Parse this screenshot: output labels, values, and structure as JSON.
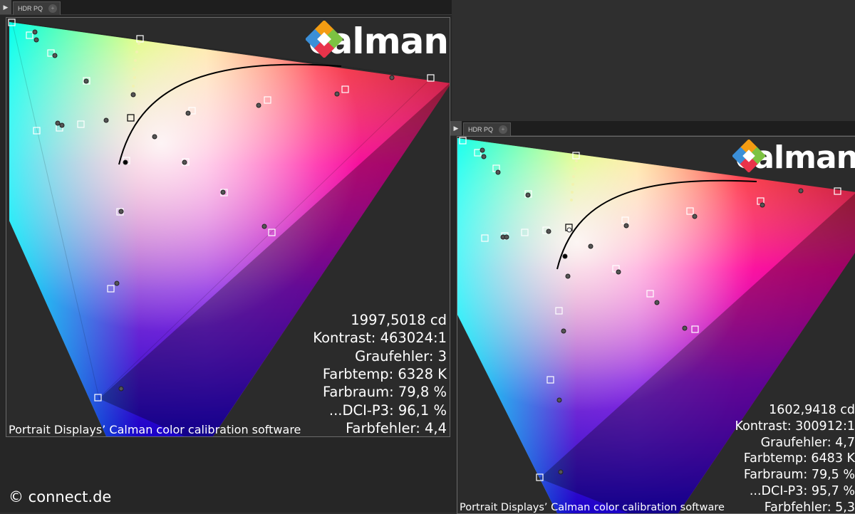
{
  "panels": [
    {
      "tab_label": "HDR PQ",
      "logo_text": "calman",
      "stats": {
        "luminance": "1997,5018 cd",
        "contrast": "Kontrast: 463024:1",
        "gray_error": "Graufehler: 3",
        "color_temp": "Farbtemp: 6328 K",
        "color_space": "Farbraum: 79,8 %",
        "dci_p3": "...DCI-P3: 96,1 %",
        "color_error": "Farbfehler: 4,4"
      },
      "caption": "Portrait Displays’ Calman color calibration software"
    },
    {
      "tab_label": "HDR PQ",
      "logo_text": "calman",
      "stats": {
        "luminance": "1602,9418 cd",
        "contrast": "Kontrast: 300912:1",
        "gray_error": "Graufehler: 4,7",
        "color_temp": "Farbtemp: 6483 K",
        "color_space": "Farbraum: 79,5 %",
        "dci_p3": "...DCI-P3: 95,7 %",
        "color_error": "Farbfehler: 5,3"
      },
      "caption": "Portrait Displays’ Calman color calibration software"
    }
  ],
  "copyright": "© connect.de",
  "colors": {
    "background": "#2f2f2f",
    "panel": "#262626",
    "logo_blue": "#3b8fd8",
    "logo_orange": "#f39c12",
    "logo_green": "#7cc242",
    "logo_red": "#e8334a"
  }
}
